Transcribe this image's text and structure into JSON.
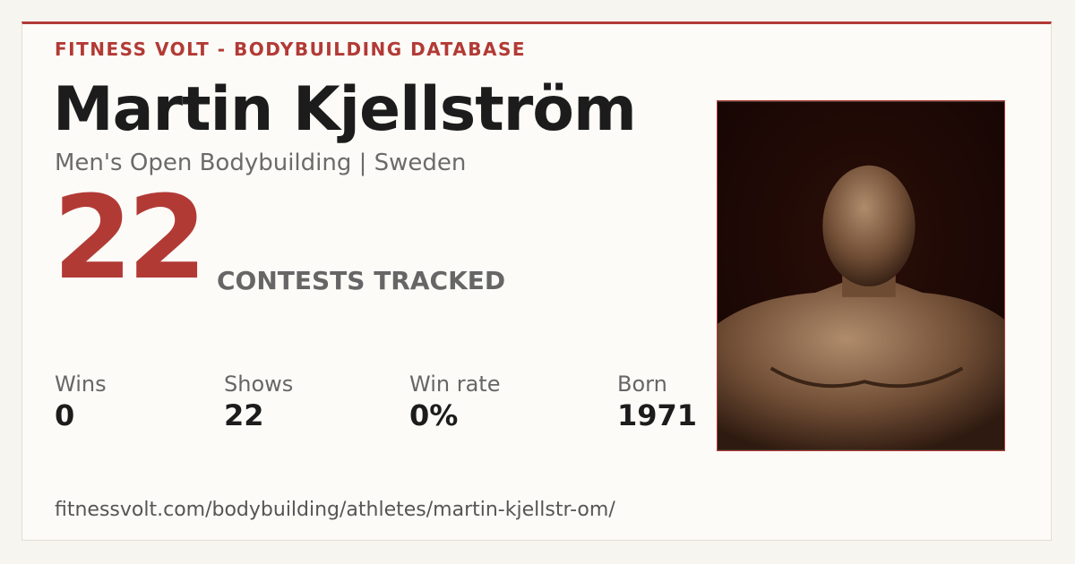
{
  "header": {
    "brand": "FITNESS VOLT - BODYBUILDING DATABASE"
  },
  "athlete": {
    "name": "Martin Kjellström",
    "subtitle": "Men's Open Bodybuilding | Sweden"
  },
  "headline": {
    "count": "22",
    "label": "CONTESTS TRACKED"
  },
  "stats": [
    {
      "label": "Wins",
      "value": "0"
    },
    {
      "label": "Shows",
      "value": "22"
    },
    {
      "label": "Win rate",
      "value": "0%"
    },
    {
      "label": "Born",
      "value": "1971"
    }
  ],
  "footer": {
    "url": "fitnessvolt.com/bodybuilding/athletes/martin-kjellstr-om/"
  }
}
